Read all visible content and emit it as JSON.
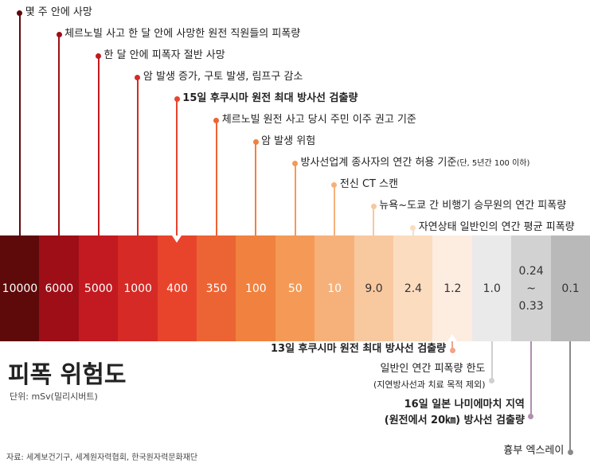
{
  "title": "피폭 위험도",
  "unit": "단위: mSv(밀리시버트)",
  "source": "자료: 세계보건기구, 세계원자력협회, 한국원자력문화재단",
  "chart_data": {
    "type": "table",
    "title": "피폭 위험도",
    "unit": "mSv(밀리시버트)",
    "categories": [
      "10000",
      "6000",
      "5000",
      "1000",
      "400",
      "350",
      "100",
      "50",
      "10",
      "9.0",
      "2.4",
      "1.2",
      "1.0",
      "0.24\n~\n0.33",
      "0.1"
    ],
    "values": [
      10000,
      6000,
      5000,
      1000,
      400,
      350,
      100,
      50,
      10,
      9.0,
      2.4,
      1.2,
      1.0,
      "0.24~0.33",
      0.1
    ],
    "colors": [
      "#5e0a0a",
      "#9d0e16",
      "#c21a20",
      "#d52a25",
      "#e8442c",
      "#ec6433",
      "#f0813f",
      "#f49a56",
      "#f6b17a",
      "#f8c89f",
      "#fbdcbf",
      "#fdece0",
      "#eaeaea",
      "#d2d2d2",
      "#b9b9b9"
    ],
    "top_annotations": [
      {
        "band": 0,
        "text": "몇 주 안에 사망"
      },
      {
        "band": 1,
        "text": "체르노빌 사고  한 달 안에 사망한 원전 직원들의 피폭량"
      },
      {
        "band": 2,
        "text": "한 달 안에  피폭자  절반 사망"
      },
      {
        "band": 3,
        "text": "암 발생 증가,  구토 발생,  림프구 감소"
      },
      {
        "band": 4,
        "text": "15일   후쿠시마  원전 최대  방사선 검출량",
        "bold": true
      },
      {
        "band": 5,
        "text": "체르노빌 원전   사고 당시 주민   이주 권고 기준"
      },
      {
        "band": 6,
        "text": "암 발생  위험"
      },
      {
        "band": 7,
        "text": "방사선업계   종사자의 연간 허용 기준",
        "note": "(단, 5년간 100 이하)"
      },
      {
        "band": 8,
        "text": "전신 CT   스캔"
      },
      {
        "band": 9,
        "text": "뉴욕~도쿄 간  비행기 승무원의 연간 피폭량"
      },
      {
        "band": 10,
        "text": "자연상태   일반인의 연간 평균 피폭량"
      }
    ],
    "bottom_annotations": [
      {
        "band": 11,
        "lines": [
          "13일   후쿠시마   원전 최대  방사선 검출량"
        ],
        "bold": true
      },
      {
        "band": 12,
        "lines": [
          "일반인 연간   피폭량 한도",
          "(지연방사선과 치료 목적 제외)"
        ]
      },
      {
        "band": 13,
        "lines": [
          "16일  일본  나미에마치 지역",
          "(원전에서 20㎞) 방사선 검출량"
        ],
        "bold": true
      },
      {
        "band": 14,
        "lines": [
          "흉부  엑스레이"
        ]
      }
    ]
  }
}
